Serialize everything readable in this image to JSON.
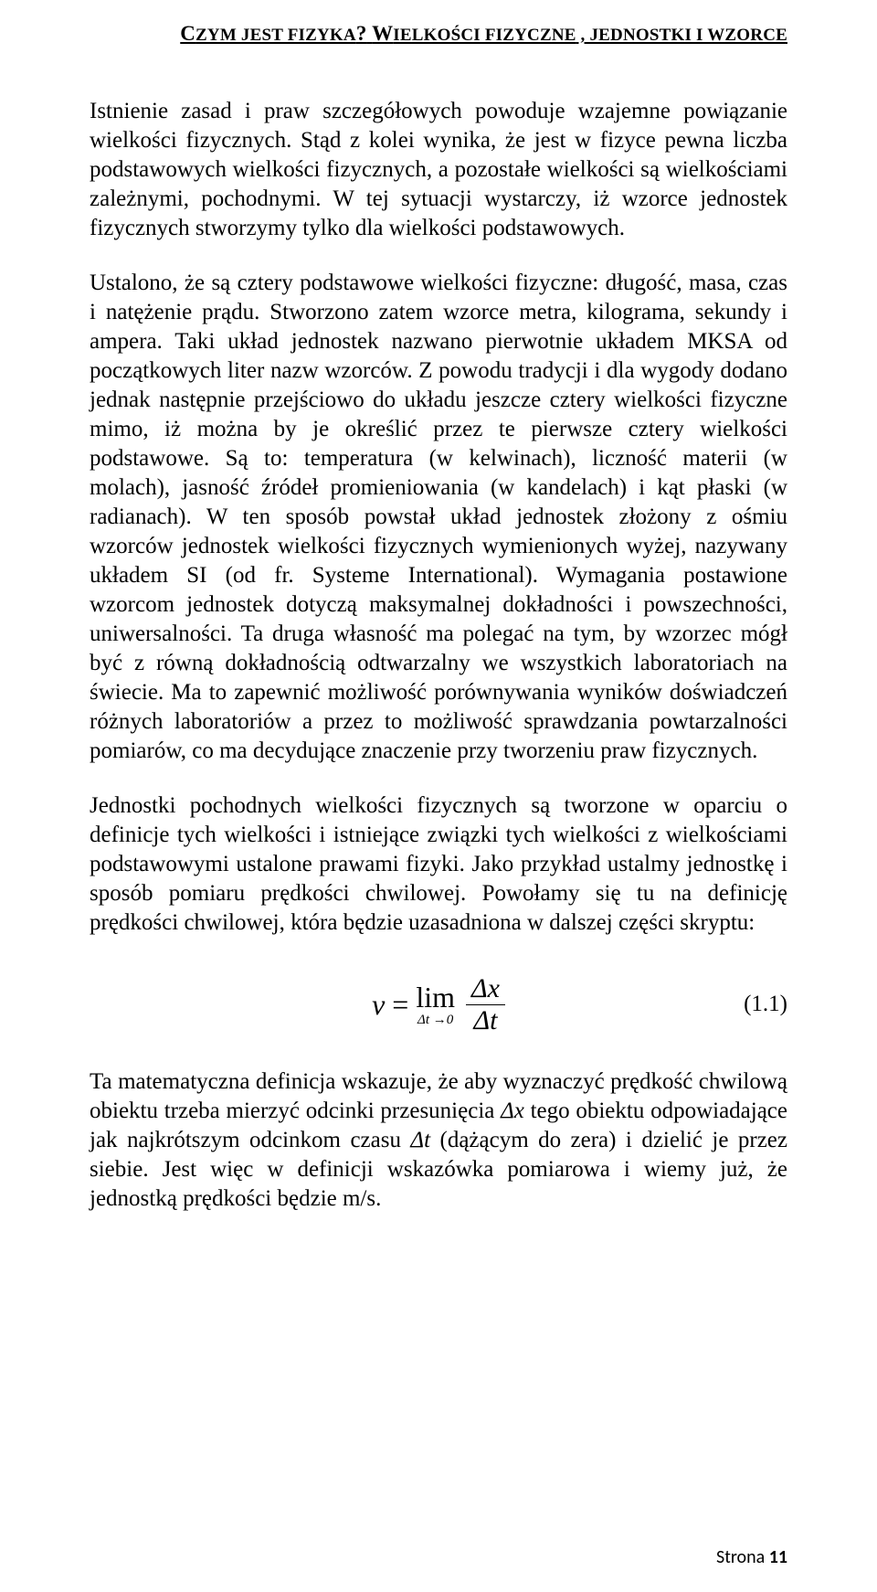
{
  "header": {
    "text_sc1": "C",
    "text1": "ZYM JEST FIZYKA",
    "q": "?",
    "sp": " ",
    "text_sc2": "W",
    "text2": "IELKOŚCI FIZYCZNE",
    "comma": " ,",
    "rest": " JEDNOSTKI I WZORCE"
  },
  "p1": "Istnienie zasad i praw szczegółowych powoduje wzajemne powiązanie wielkości fizycznych. Stąd z kolei wynika, że jest w fizyce pewna liczba podstawowych wielkości fizycznych, a pozostałe wielkości są wielkościami zależnymi, pochodnymi. W tej sytuacji wystarczy, iż wzorce jednostek fizycznych stworzymy tylko dla wielkości podstawowych.",
  "p2": "Ustalono, że są cztery podstawowe wielkości fizyczne: długość, masa, czas i natężenie prądu. Stworzono zatem wzorce metra, kilograma, sekundy i ampera. Taki układ jednostek nazwano pierwotnie układem MKSA od początkowych liter nazw wzorców. Z powodu tradycji i dla wygody dodano jednak następnie przejściowo do układu jeszcze cztery wielkości fizyczne mimo, iż można by je określić przez te pierwsze cztery wielkości podstawowe. Są to: temperatura (w kelwinach), liczność materii (w molach), jasność źródeł promieniowania (w kandelach) i kąt płaski (w radianach). W ten sposób powstał układ jednostek złożony z ośmiu wzorców jednostek wielkości fizycznych wymienionych wyżej, nazywany układem SI (od fr. Systeme International). Wymagania postawione wzorcom jednostek dotyczą maksymalnej dokładności i powszechności, uniwersalności. Ta druga własność ma polegać na tym, by wzorzec mógł być z równą dokładnością odtwarzalny we wszystkich laboratoriach na świecie. Ma to zapewnić możliwość porównywania wyników doświadczeń różnych laboratoriów a przez to możliwość sprawdzania powtarzalności pomiarów, co ma decydujące znaczenie przy tworzeniu praw fizycznych.",
  "p3": "Jednostki pochodnych wielkości fizycznych są tworzone w oparciu o definicje tych wielkości i istniejące związki tych wielkości z wielkościami podstawowymi ustalone prawami fizyki. Jako przykład ustalmy jednostkę i sposób pomiaru prędkości chwilowej. Powołamy się tu na definicję prędkości chwilowej, która będzie uzasadniona w dalszej części skryptu:",
  "equation": {
    "lhs": "v",
    "eq": "=",
    "lim": "lim",
    "sub": "Δt →0",
    "num": "Δx",
    "den": "Δt",
    "number": "(1.1)"
  },
  "p4_a": "Ta matematyczna definicja wskazuje, że aby wyznaczyć prędkość chwilową obiektu trzeba mierzyć odcinki przesunięcia ",
  "p4_dx": "Δx",
  "p4_b": " tego obiektu odpowiadające jak najkrótszym odcinkom czasu ",
  "p4_dt": "Δt",
  "p4_c": " (dążącym do zera) i dzielić je przez siebie. Jest więc w definicji wskazówka pomiarowa i wiemy już, że jednostką prędkości będzie m/s.",
  "footer": {
    "label": "Strona ",
    "page": "11"
  }
}
